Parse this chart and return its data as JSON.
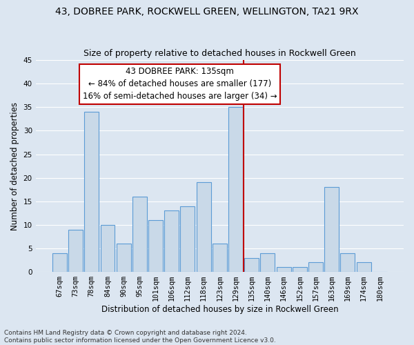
{
  "title1": "43, DOBREE PARK, ROCKWELL GREEN, WELLINGTON, TA21 9RX",
  "title2": "Size of property relative to detached houses in Rockwell Green",
  "xlabel": "Distribution of detached houses by size in Rockwell Green",
  "ylabel": "Number of detached properties",
  "footnote": "Contains HM Land Registry data © Crown copyright and database right 2024.\nContains public sector information licensed under the Open Government Licence v3.0.",
  "categories": [
    "67sqm",
    "73sqm",
    "78sqm",
    "84sqm",
    "90sqm",
    "95sqm",
    "101sqm",
    "106sqm",
    "112sqm",
    "118sqm",
    "123sqm",
    "129sqm",
    "135sqm",
    "140sqm",
    "146sqm",
    "152sqm",
    "157sqm",
    "163sqm",
    "169sqm",
    "174sqm",
    "180sqm"
  ],
  "values": [
    4,
    9,
    34,
    10,
    6,
    16,
    11,
    13,
    14,
    19,
    6,
    35,
    3,
    4,
    1,
    1,
    2,
    18,
    4,
    2,
    0
  ],
  "bar_color": "#c9d9e8",
  "bar_edge_color": "#5b9bd5",
  "background_color": "#dce6f1",
  "annotation_box_color": "#c00000",
  "annotation_text": "43 DOBREE PARK: 135sqm\n← 84% of detached houses are smaller (177)\n16% of semi-detached houses are larger (34) →",
  "vline_x_index": 12,
  "ylim": [
    0,
    45
  ],
  "yticks": [
    0,
    5,
    10,
    15,
    20,
    25,
    30,
    35,
    40,
    45
  ],
  "grid_color": "#ffffff",
  "title_fontsize": 10,
  "subtitle_fontsize": 9,
  "annotation_fontsize": 8.5,
  "tick_fontsize": 7.5,
  "ylabel_fontsize": 8.5,
  "xlabel_fontsize": 8.5,
  "footnote_fontsize": 6.5
}
